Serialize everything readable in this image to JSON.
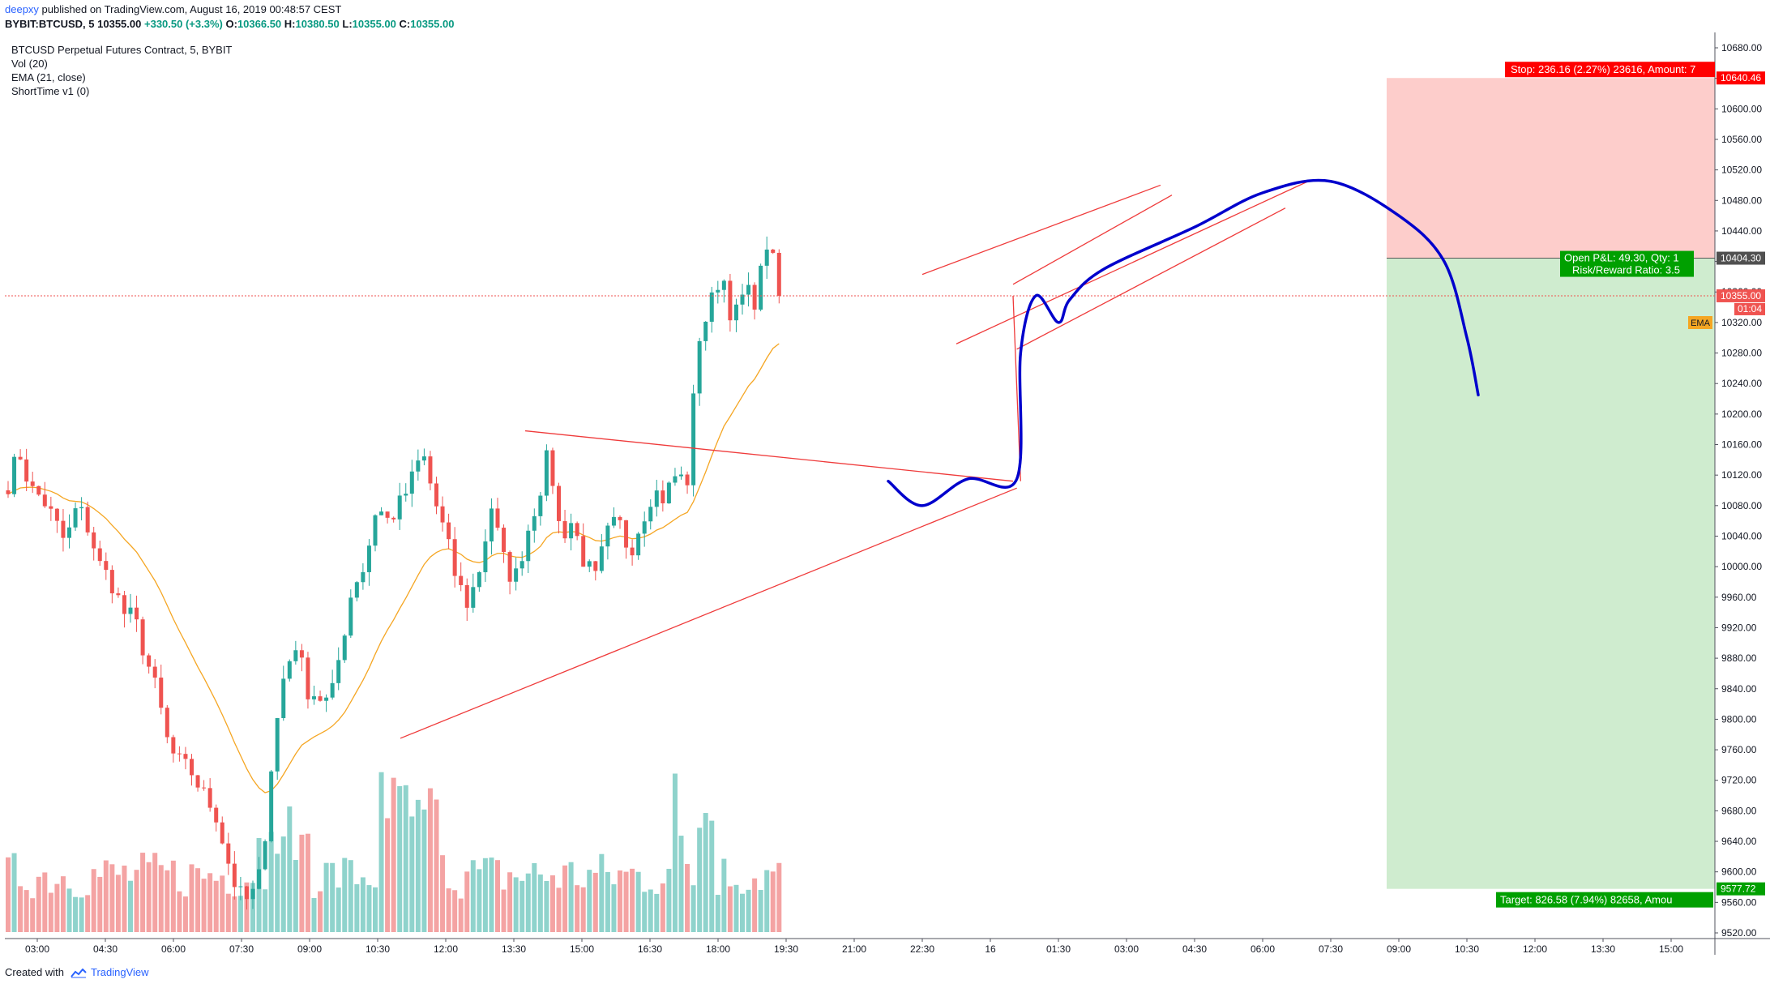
{
  "header": {
    "author": "deepxy",
    "published": "published on TradingView.com, August 16, 2019 00:48:57 CEST"
  },
  "symbol_bar": {
    "symbol": "BYBIT:BTCUSD, 5",
    "last": "10355.00",
    "change": "+330.50 (+3.3%)",
    "o_label": "O:",
    "o": "10366.50",
    "h_label": "H:",
    "h": "10380.50",
    "l_label": "L:",
    "l": "10355.00",
    "c_label": "C:",
    "c": "10355.00"
  },
  "legend": {
    "title": "BTCUSD Perpetual Futures Contract, 5, BYBIT",
    "vol": "Vol (20)",
    "ema": "EMA (21, close)",
    "shorttime": "ShortTime v1 (0)"
  },
  "footer": {
    "created_with": "Created with",
    "brand": "TradingView"
  },
  "colors": {
    "up": "#26a69a",
    "down": "#ef5350",
    "vol_up": "#8fd3cc",
    "vol_down": "#f4a3a3",
    "ema": "#f5a623",
    "trendline": "#ef3b3b",
    "projection": "#0000cc",
    "stop_zone": "#fdcdcb",
    "target_zone": "#cfeccf",
    "stop_label": "#ff0000",
    "target_label": "#00a000"
  },
  "chart_data": {
    "type": "candlestick",
    "y_axis": {
      "range": [
        9500,
        10700
      ],
      "ticks": [
        10680,
        10640,
        10600,
        10560,
        10520,
        10480,
        10440,
        10400,
        10360,
        10320,
        10280,
        10240,
        10200,
        10160,
        10120,
        10080,
        10040,
        10000,
        9960,
        9920,
        9880,
        9840,
        9800,
        9760,
        9720,
        9680,
        9640,
        9600,
        9560,
        9520
      ],
      "tick_labels": [
        "10680.00",
        "10640.00",
        "10600.00",
        "10560.00",
        "10520.00",
        "10480.00",
        "10440.00",
        "10400.00",
        "10360.00",
        "10320.00",
        "10280.00",
        "10240.00",
        "10200.00",
        "10160.00",
        "10120.00",
        "10080.00",
        "10040.00",
        "10000.00",
        "9960.00",
        "9920.00",
        "9880.00",
        "9840.00",
        "9800.00",
        "9760.00",
        "9720.00",
        "9680.00",
        "9640.00",
        "9600.00",
        "9560.00",
        "9520.00"
      ]
    },
    "x_axis": {
      "tick_labels": [
        "03:00",
        "04:30",
        "06:00",
        "07:30",
        "09:00",
        "10:30",
        "12:00",
        "13:30",
        "15:00",
        "16:30",
        "18:00",
        "19:30",
        "21:00",
        "22:30",
        "16",
        "01:30",
        "03:00",
        "04:30",
        "06:00",
        "07:30",
        "09:00",
        "10:30",
        "12:00",
        "13:30",
        "15:00"
      ],
      "minutes_per_tick": 90,
      "first_tick": "15 Aug 03:00"
    },
    "price_path": [
      [
        0,
        10110
      ],
      [
        1,
        10150
      ],
      [
        2,
        10100
      ],
      [
        3,
        10090
      ],
      [
        4,
        10060
      ],
      [
        5,
        10030
      ],
      [
        6,
        10080
      ],
      [
        7,
        10050
      ],
      [
        8,
        10000
      ],
      [
        9,
        9980
      ],
      [
        10,
        9940
      ],
      [
        11,
        9930
      ],
      [
        12,
        9880
      ],
      [
        13,
        9830
      ],
      [
        14,
        9760
      ],
      [
        15,
        9740
      ],
      [
        16,
        9730
      ],
      [
        17,
        9700
      ],
      [
        18,
        9680
      ],
      [
        19,
        9620
      ],
      [
        20,
        9570
      ],
      [
        21,
        9560
      ],
      [
        22,
        9600
      ],
      [
        23,
        9760
      ],
      [
        24,
        9860
      ],
      [
        25,
        9900
      ],
      [
        26,
        9840
      ],
      [
        27,
        9830
      ],
      [
        28,
        9820
      ],
      [
        29,
        9900
      ],
      [
        30,
        9980
      ],
      [
        31,
        10000
      ],
      [
        32,
        10080
      ],
      [
        33,
        10060
      ],
      [
        34,
        10080
      ],
      [
        35,
        10110
      ],
      [
        36,
        10150
      ],
      [
        37,
        10090
      ],
      [
        38,
        10040
      ],
      [
        39,
        9980
      ],
      [
        40,
        9950
      ],
      [
        41,
        10000
      ],
      [
        42,
        10080
      ],
      [
        43,
        10010
      ],
      [
        44,
        9980
      ],
      [
        45,
        10040
      ],
      [
        46,
        10090
      ],
      [
        47,
        10150
      ],
      [
        48,
        10040
      ],
      [
        49,
        10060
      ],
      [
        50,
        10010
      ],
      [
        51,
        9980
      ],
      [
        52,
        10040
      ],
      [
        53,
        10060
      ],
      [
        54,
        10020
      ],
      [
        55,
        10060
      ],
      [
        56,
        10100
      ],
      [
        57,
        10090
      ],
      [
        58,
        10120
      ],
      [
        59,
        10110
      ],
      [
        60,
        10300
      ],
      [
        61,
        10340
      ],
      [
        62,
        10390
      ],
      [
        63,
        10320
      ],
      [
        64,
        10360
      ],
      [
        65,
        10350
      ],
      [
        66,
        10430
      ],
      [
        67,
        10360
      ]
    ],
    "candle_bar_step_px": 7.55,
    "ema_period": 21,
    "volume": {
      "max_value_label": "Volume"
    },
    "last_price": {
      "value": 10355.0,
      "label": "10355.00",
      "countdown": "01:04"
    },
    "ema_tag": "EMA",
    "position": {
      "side": "short",
      "entry": 10404.3,
      "entry_label": "10404.30",
      "stop": 10640.46,
      "stop_label": "10640.46",
      "target": 9577.72,
      "target_label": "9577.72",
      "stop_text": "Stop: 236.16 (2.27%) 23616, Amount: 7",
      "target_text": "Target: 826.58 (7.94%) 82658, Amou",
      "pnl_text": "Open P&L: 49.30, Qty: 1",
      "rr_text": "Risk/Reward Ratio: 3.5",
      "x_start_label": "09:00 (16 Aug)",
      "x_end_label": "beyond 15:00"
    },
    "trendlines": [
      {
        "name": "triangle-top",
        "from": [
          "13:45",
          10178
        ],
        "to": [
          "00:30",
          10112
        ]
      },
      {
        "name": "triangle-bottom",
        "from": [
          "11:00",
          9775
        ],
        "to": [
          "00:35",
          10103
        ]
      },
      {
        "name": "wedge-top",
        "from": [
          "22:30",
          10383
        ],
        "to": [
          "03:45",
          10500
        ]
      },
      {
        "name": "wedge-upper-mid",
        "from": [
          "00:30",
          10370
        ],
        "to": [
          "04:00",
          10487
        ]
      },
      {
        "name": "wedge-lower-mid",
        "from": [
          "23:15",
          10292
        ],
        "to": [
          "07:00",
          10505
        ]
      },
      {
        "name": "wedge-bottom",
        "from": [
          "00:35",
          10285
        ],
        "to": [
          "06:30",
          10470
        ]
      },
      {
        "name": "vertical-drop",
        "from": [
          "00:30",
          10355
        ],
        "to": [
          "00:40",
          10112
        ]
      }
    ],
    "projection_path": [
      [
        "21:45",
        10112
      ],
      [
        "22:30",
        10080
      ],
      [
        "23:30",
        10115
      ],
      [
        "00:35",
        10115
      ],
      [
        "00:40",
        10280
      ],
      [
        "01:00",
        10355
      ],
      [
        "01:30",
        10320
      ],
      [
        "01:45",
        10350
      ],
      [
        "02:30",
        10390
      ],
      [
        "04:30",
        10445
      ],
      [
        "06:00",
        10490
      ],
      [
        "07:30",
        10505
      ],
      [
        "09:00",
        10460
      ],
      [
        "10:00",
        10400
      ],
      [
        "10:30",
        10300
      ],
      [
        "10:45",
        10225
      ]
    ]
  }
}
